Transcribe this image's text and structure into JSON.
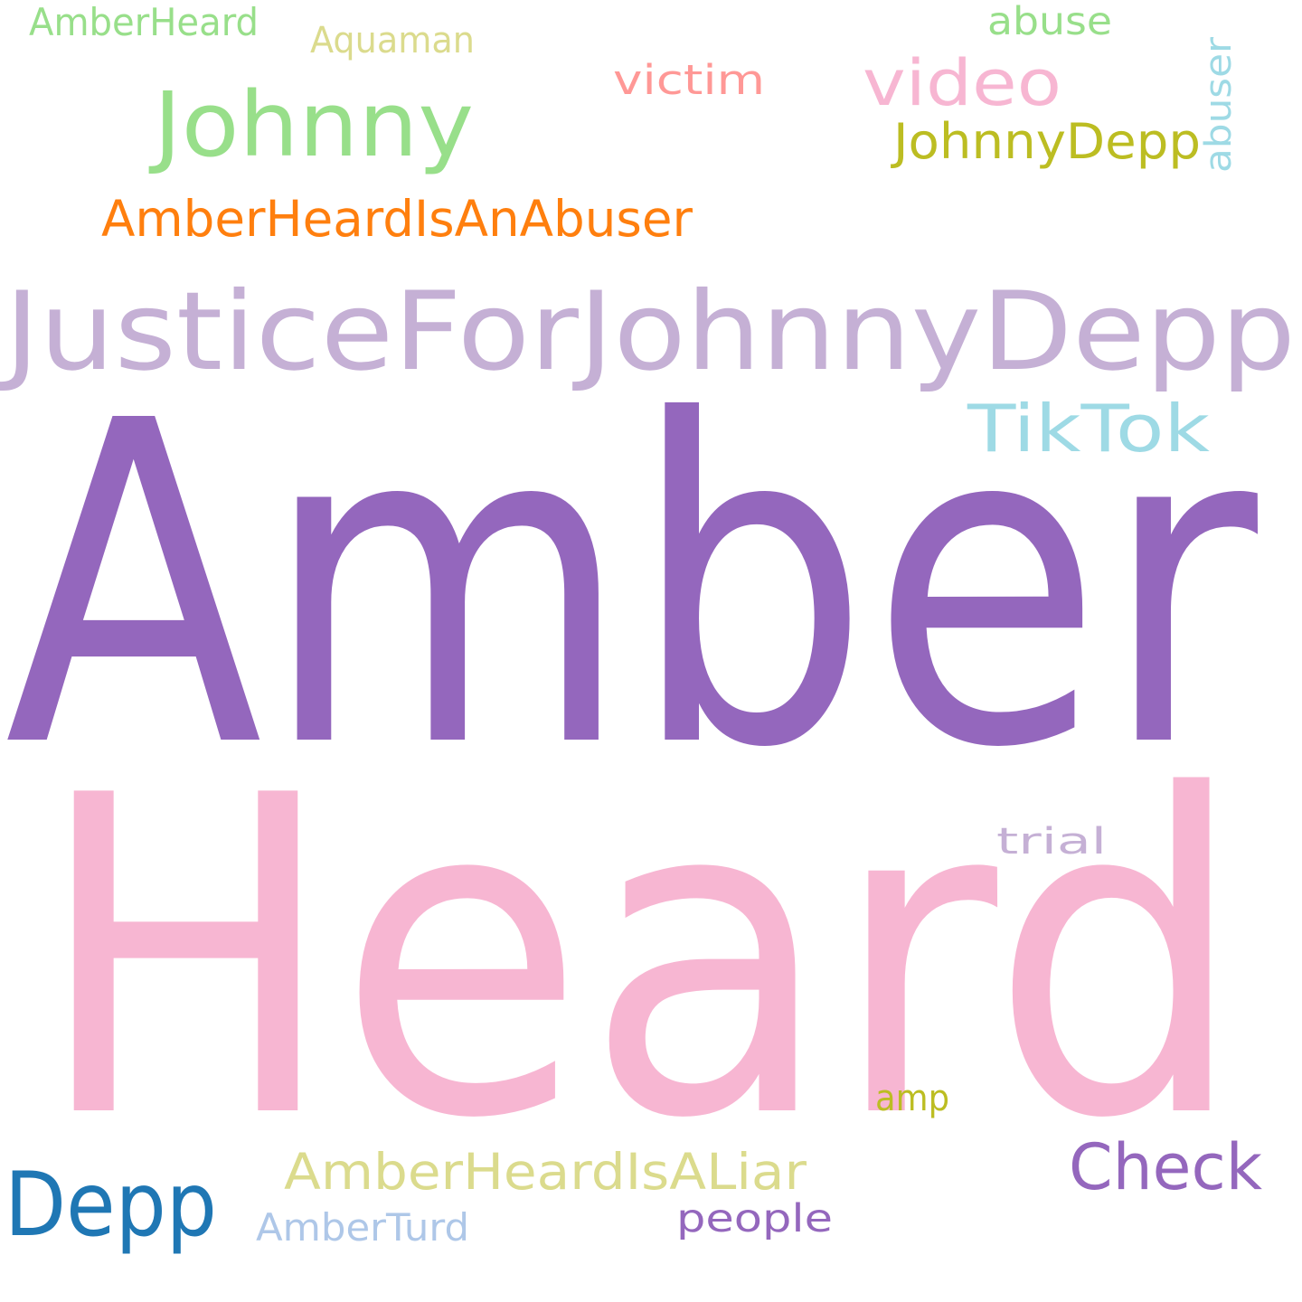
{
  "word_cloud": {
    "words": [
      {
        "id": "amber",
        "text": "Amber",
        "color": "#9467bd"
      },
      {
        "id": "heard",
        "text": "Heard",
        "color": "#f7b6d2"
      },
      {
        "id": "justice-for-johnny-depp",
        "text": "JusticeForJohnnyDepp",
        "color": "#c5b0d5"
      },
      {
        "id": "johnny",
        "text": "Johnny",
        "color": "#98df8a"
      },
      {
        "id": "amber-heard-is-an-abuser",
        "text": "AmberHeardIsAnAbuser",
        "color": "#ff7f0e"
      },
      {
        "id": "depp",
        "text": "Depp",
        "color": "#1f77b4"
      },
      {
        "id": "tiktok",
        "text": "TikTok",
        "color": "#9edae5"
      },
      {
        "id": "video",
        "text": "video",
        "color": "#f7b6d2"
      },
      {
        "id": "johnnydepp",
        "text": "JohnnyDepp",
        "color": "#bcbd22"
      },
      {
        "id": "check",
        "text": "Check",
        "color": "#9467bd"
      },
      {
        "id": "amber-heard-is-a-liar",
        "text": "AmberHeardIsALiar",
        "color": "#dbdb8d"
      },
      {
        "id": "victim",
        "text": "victim",
        "color": "#ff9896"
      },
      {
        "id": "abuse",
        "text": "abuse",
        "color": "#98df8a"
      },
      {
        "id": "abuser",
        "text": "abuser",
        "color": "#9edae5"
      },
      {
        "id": "amberheard",
        "text": "AmberHeard",
        "color": "#98df8a"
      },
      {
        "id": "aquaman",
        "text": "Aquaman",
        "color": "#dbdb8d"
      },
      {
        "id": "trial",
        "text": "trial",
        "color": "#c5b0d5"
      },
      {
        "id": "amp",
        "text": "amp",
        "color": "#bcbd22"
      },
      {
        "id": "people",
        "text": "people",
        "color": "#9467bd"
      },
      {
        "id": "amberturd",
        "text": "AmberTurd",
        "color": "#aec7e8"
      }
    ]
  }
}
